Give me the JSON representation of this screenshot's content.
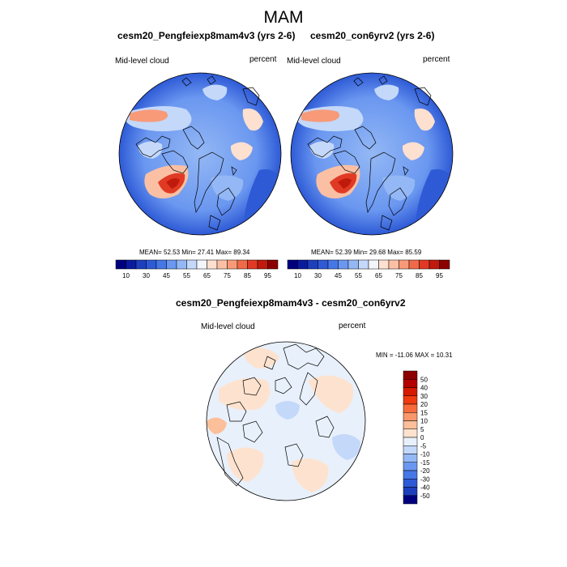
{
  "figure": {
    "title": "MAM",
    "panels": [
      {
        "id": "left",
        "title": "cesm20_Pengfeiexp8mam4v3 (yrs 2-6)",
        "left_label": "Mid-level cloud",
        "right_label": "percent",
        "stats": "MEAN=  52.53  Min=  27.41  Max=  89.34"
      },
      {
        "id": "right",
        "title": "cesm20_con6yrv2 (yrs 2-6)",
        "left_label": "Mid-level cloud",
        "right_label": "percent",
        "stats": "MEAN=  52.39  Min=  29.68  Max=  85.59"
      },
      {
        "id": "diff",
        "title": "cesm20_Pengfeiexp8mam4v3 - cesm20_con6yrv2",
        "left_label": "Mid-level cloud",
        "right_label": "percent",
        "stats": "MIN = -11.06 MAX =  10.31"
      }
    ],
    "colorbar_top": {
      "colors": [
        "#00007f",
        "#0a1a9e",
        "#1d3fbd",
        "#2e5ad6",
        "#4677e6",
        "#6a97f0",
        "#94b8f5",
        "#c4d8fa",
        "#f2f5fb",
        "#fde0cf",
        "#fbc0a4",
        "#f89a78",
        "#f06a4a",
        "#e03a24",
        "#c01a0c",
        "#8c0000"
      ],
      "tick_labels": [
        "10",
        "30",
        "45",
        "55",
        "65",
        "75",
        "85",
        "95"
      ]
    },
    "colorbar_diff": {
      "colors": [
        "#8c0000",
        "#b30000",
        "#d61a00",
        "#f03a10",
        "#f86a3a",
        "#f9966a",
        "#fbbf9a",
        "#fde3cf",
        "#e8f0fb",
        "#c4d8fa",
        "#94b8f5",
        "#6a97f0",
        "#4677e6",
        "#2e5ad6",
        "#1d3fbd",
        "#00007f"
      ],
      "tick_labels": [
        "50",
        "40",
        "30",
        "20",
        "15",
        "10",
        "5",
        "0",
        "-5",
        "-10",
        "-15",
        "-20",
        "-30",
        "-40",
        "-50"
      ]
    }
  }
}
